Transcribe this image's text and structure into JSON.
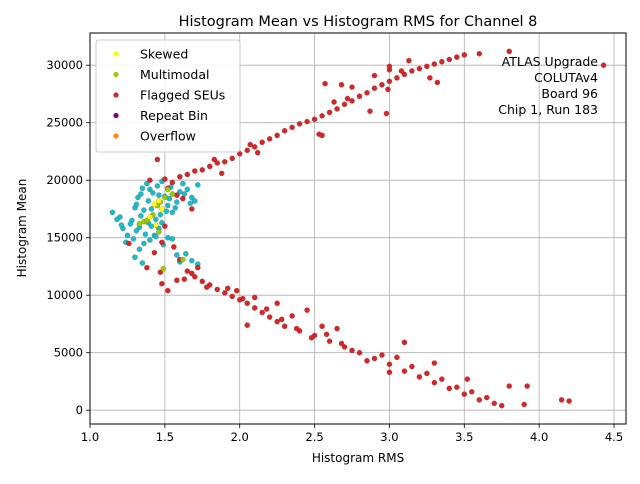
{
  "chart_data": {
    "type": "scatter",
    "title": "Histogram Mean vs Histogram RMS for Channel 8",
    "xlabel": "Histogram RMS",
    "ylabel": "Histogram Mean",
    "xlim": [
      1.0,
      4.58
    ],
    "ylim": [
      -1200,
      32800
    ],
    "xticks": [
      1.0,
      1.5,
      2.0,
      2.5,
      3.0,
      3.5,
      4.0,
      4.5
    ],
    "xtick_labels": [
      "1.0",
      "1.5",
      "2.0",
      "2.5",
      "3.0",
      "3.5",
      "4.0",
      "4.5"
    ],
    "yticks": [
      0,
      5000,
      10000,
      15000,
      20000,
      25000,
      30000
    ],
    "ytick_labels": [
      "0",
      "5000",
      "10000",
      "15000",
      "20000",
      "25000",
      "30000"
    ],
    "grid": true,
    "legend_position": "top-left",
    "annotation": [
      "ATLAS Upgrade",
      "COLUTAv4",
      "Board 96",
      "Chip 1, Run 183"
    ],
    "series": [
      {
        "name": "Skewed",
        "color": "#ffff00",
        "points": [
          [
            1.43,
            17900
          ],
          [
            1.46,
            18200
          ],
          [
            1.4,
            16800
          ],
          [
            1.48,
            17500
          ],
          [
            1.44,
            16100
          ]
        ]
      },
      {
        "name": "Multimodal",
        "color": "#9acd00",
        "points": [
          [
            1.33,
            16200
          ],
          [
            1.36,
            16400
          ],
          [
            1.47,
            18100
          ],
          [
            1.5,
            18500
          ],
          [
            1.45,
            17800
          ],
          [
            1.49,
            12300
          ],
          [
            1.62,
            13100
          ],
          [
            1.52,
            19200
          ],
          [
            1.42,
            17000
          ],
          [
            1.38,
            16500
          ],
          [
            1.46,
            15500
          ],
          [
            1.55,
            18800
          ]
        ]
      },
      {
        "name": "Flagged SEUs",
        "color": "#d62728",
        "points": [
          [
            1.5,
            20100
          ],
          [
            1.6,
            20300
          ],
          [
            1.7,
            20800
          ],
          [
            1.8,
            21200
          ],
          [
            1.9,
            21600
          ],
          [
            2.0,
            22300
          ],
          [
            2.1,
            22900
          ],
          [
            2.2,
            23600
          ],
          [
            2.3,
            24300
          ],
          [
            2.4,
            24900
          ],
          [
            2.5,
            25300
          ],
          [
            2.6,
            25900
          ],
          [
            2.7,
            26600
          ],
          [
            2.8,
            27300
          ],
          [
            2.9,
            28000
          ],
          [
            3.0,
            28600
          ],
          [
            3.1,
            29200
          ],
          [
            3.2,
            29700
          ],
          [
            3.3,
            30100
          ],
          [
            3.4,
            30500
          ],
          [
            3.5,
            30900
          ],
          [
            3.6,
            31000
          ],
          [
            3.8,
            31200
          ],
          [
            4.43,
            30000
          ],
          [
            1.55,
            19800
          ],
          [
            1.65,
            20500
          ],
          [
            1.75,
            20900
          ],
          [
            1.85,
            21500
          ],
          [
            1.95,
            21900
          ],
          [
            2.05,
            22600
          ],
          [
            2.15,
            23300
          ],
          [
            2.25,
            23900
          ],
          [
            2.35,
            24600
          ],
          [
            2.45,
            25100
          ],
          [
            2.55,
            25600
          ],
          [
            2.65,
            26200
          ],
          [
            2.75,
            26900
          ],
          [
            2.85,
            27600
          ],
          [
            2.95,
            28300
          ],
          [
            3.05,
            28900
          ],
          [
            3.15,
            29500
          ],
          [
            3.25,
            29900
          ],
          [
            3.35,
            30300
          ],
          [
            3.45,
            30700
          ],
          [
            1.83,
            21800
          ],
          [
            1.88,
            20600
          ],
          [
            2.07,
            23100
          ],
          [
            2.12,
            22400
          ],
          [
            2.63,
            26800
          ],
          [
            2.72,
            27100
          ],
          [
            3.0,
            29600
          ],
          [
            1.52,
            19300
          ],
          [
            1.58,
            18700
          ],
          [
            1.62,
            18400
          ],
          [
            1.68,
            17500
          ],
          [
            1.56,
            14200
          ],
          [
            1.6,
            13100
          ],
          [
            1.65,
            12100
          ],
          [
            1.7,
            11600
          ],
          [
            1.75,
            11200
          ],
          [
            1.8,
            10900
          ],
          [
            1.85,
            10500
          ],
          [
            1.9,
            10200
          ],
          [
            1.95,
            9900
          ],
          [
            2.0,
            9600
          ],
          [
            2.05,
            9300
          ],
          [
            2.1,
            8900
          ],
          [
            2.15,
            8500
          ],
          [
            2.2,
            8100
          ],
          [
            2.25,
            7700
          ],
          [
            2.3,
            7300
          ],
          [
            2.4,
            6900
          ],
          [
            2.5,
            6500
          ],
          [
            2.6,
            6000
          ],
          [
            2.7,
            5500
          ],
          [
            2.8,
            5000
          ],
          [
            2.9,
            4500
          ],
          [
            3.0,
            4000
          ],
          [
            3.1,
            3400
          ],
          [
            3.2,
            2900
          ],
          [
            3.3,
            2400
          ],
          [
            3.4,
            1900
          ],
          [
            3.5,
            1400
          ],
          [
            3.6,
            900
          ],
          [
            3.7,
            600
          ],
          [
            3.9,
            500
          ],
          [
            4.15,
            900
          ],
          [
            4.2,
            800
          ],
          [
            2.05,
            7400
          ],
          [
            2.45,
            8700
          ],
          [
            2.55,
            7300
          ],
          [
            2.65,
            7100
          ],
          [
            3.1,
            5900
          ],
          [
            3.0,
            3300
          ],
          [
            3.3,
            4100
          ],
          [
            3.52,
            2700
          ],
          [
            3.8,
            2100
          ],
          [
            3.92,
            2100
          ],
          [
            2.1,
            9800
          ],
          [
            2.25,
            9300
          ],
          [
            2.35,
            8200
          ],
          [
            2.75,
            5200
          ],
          [
            2.85,
            4300
          ],
          [
            2.95,
            4800
          ],
          [
            3.05,
            4600
          ],
          [
            3.15,
            3800
          ],
          [
            3.25,
            3200
          ],
          [
            3.35,
            2700
          ],
          [
            3.45,
            2000
          ],
          [
            3.55,
            1600
          ],
          [
            3.65,
            1100
          ],
          [
            3.75,
            400
          ],
          [
            1.92,
            10600
          ],
          [
            1.68,
            11900
          ],
          [
            1.72,
            12400
          ],
          [
            1.63,
            11400
          ],
          [
            1.48,
            11000
          ],
          [
            1.47,
            12000
          ],
          [
            1.52,
            10400
          ],
          [
            1.58,
            11300
          ],
          [
            1.78,
            10700
          ],
          [
            2.02,
            9700
          ],
          [
            1.98,
            10400
          ],
          [
            2.18,
            8800
          ],
          [
            2.28,
            7900
          ],
          [
            2.38,
            7100
          ],
          [
            2.48,
            6300
          ],
          [
            2.58,
            6600
          ],
          [
            2.68,
            5800
          ],
          [
            1.45,
            21800
          ],
          [
            1.4,
            20000
          ],
          [
            1.48,
            14600
          ],
          [
            1.26,
            14500
          ],
          [
            1.38,
            12400
          ],
          [
            1.5,
            16000
          ],
          [
            1.43,
            13700
          ],
          [
            2.57,
            28400
          ],
          [
            2.68,
            28300
          ],
          [
            2.75,
            28100
          ],
          [
            2.9,
            29100
          ],
          [
            3.0,
            29900
          ],
          [
            3.08,
            29500
          ],
          [
            3.13,
            30400
          ],
          [
            3.27,
            28900
          ],
          [
            3.32,
            28500
          ],
          [
            2.53,
            24000
          ],
          [
            2.55,
            23900
          ],
          [
            2.98,
            25800
          ],
          [
            2.87,
            26000
          ],
          [
            2.99,
            27900
          ]
        ]
      },
      {
        "name": "Repeat Bin",
        "color": "#800080",
        "points": []
      },
      {
        "name": "Overflow",
        "color": "#ff8c00",
        "points": []
      },
      {
        "name": "",
        "color": "#17becf",
        "show_in_legend": false,
        "points": [
          [
            1.15,
            17200
          ],
          [
            1.2,
            16800
          ],
          [
            1.22,
            15800
          ],
          [
            1.25,
            15200
          ],
          [
            1.28,
            16500
          ],
          [
            1.3,
            17600
          ],
          [
            1.32,
            18500
          ],
          [
            1.35,
            19300
          ],
          [
            1.38,
            19700
          ],
          [
            1.4,
            19200
          ],
          [
            1.42,
            18900
          ],
          [
            1.45,
            19500
          ],
          [
            1.48,
            19900
          ],
          [
            1.5,
            18600
          ],
          [
            1.52,
            17800
          ],
          [
            1.55,
            17200
          ],
          [
            1.58,
            18100
          ],
          [
            1.6,
            19000
          ],
          [
            1.62,
            19700
          ],
          [
            1.65,
            19200
          ],
          [
            1.68,
            18500
          ],
          [
            1.7,
            18200
          ],
          [
            1.72,
            19600
          ],
          [
            1.3,
            13300
          ],
          [
            1.33,
            14000
          ],
          [
            1.36,
            14500
          ],
          [
            1.4,
            14800
          ],
          [
            1.43,
            15200
          ],
          [
            1.46,
            15800
          ],
          [
            1.49,
            14400
          ],
          [
            1.52,
            15000
          ],
          [
            1.55,
            14900
          ],
          [
            1.58,
            13500
          ],
          [
            1.6,
            12900
          ],
          [
            1.64,
            13600
          ],
          [
            1.68,
            13000
          ],
          [
            1.72,
            12700
          ],
          [
            1.27,
            16200
          ],
          [
            1.31,
            15600
          ],
          [
            1.34,
            16900
          ],
          [
            1.37,
            15300
          ],
          [
            1.39,
            16300
          ],
          [
            1.41,
            17500
          ],
          [
            1.44,
            16600
          ],
          [
            1.47,
            17000
          ],
          [
            1.53,
            18400
          ],
          [
            1.57,
            17600
          ],
          [
            1.63,
            18800
          ],
          [
            1.67,
            18000
          ],
          [
            1.35,
            12800
          ],
          [
            1.33,
            15900
          ],
          [
            1.29,
            14900
          ],
          [
            1.24,
            14600
          ],
          [
            1.21,
            16100
          ],
          [
            1.18,
            16600
          ],
          [
            1.36,
            17400
          ],
          [
            1.41,
            16000
          ],
          [
            1.48,
            16300
          ],
          [
            1.51,
            17300
          ],
          [
            1.54,
            19400
          ],
          [
            1.46,
            18700
          ],
          [
            1.39,
            18200
          ],
          [
            1.44,
            15100
          ],
          [
            1.31,
            17900
          ],
          [
            1.34,
            18800
          ]
        ]
      }
    ]
  }
}
